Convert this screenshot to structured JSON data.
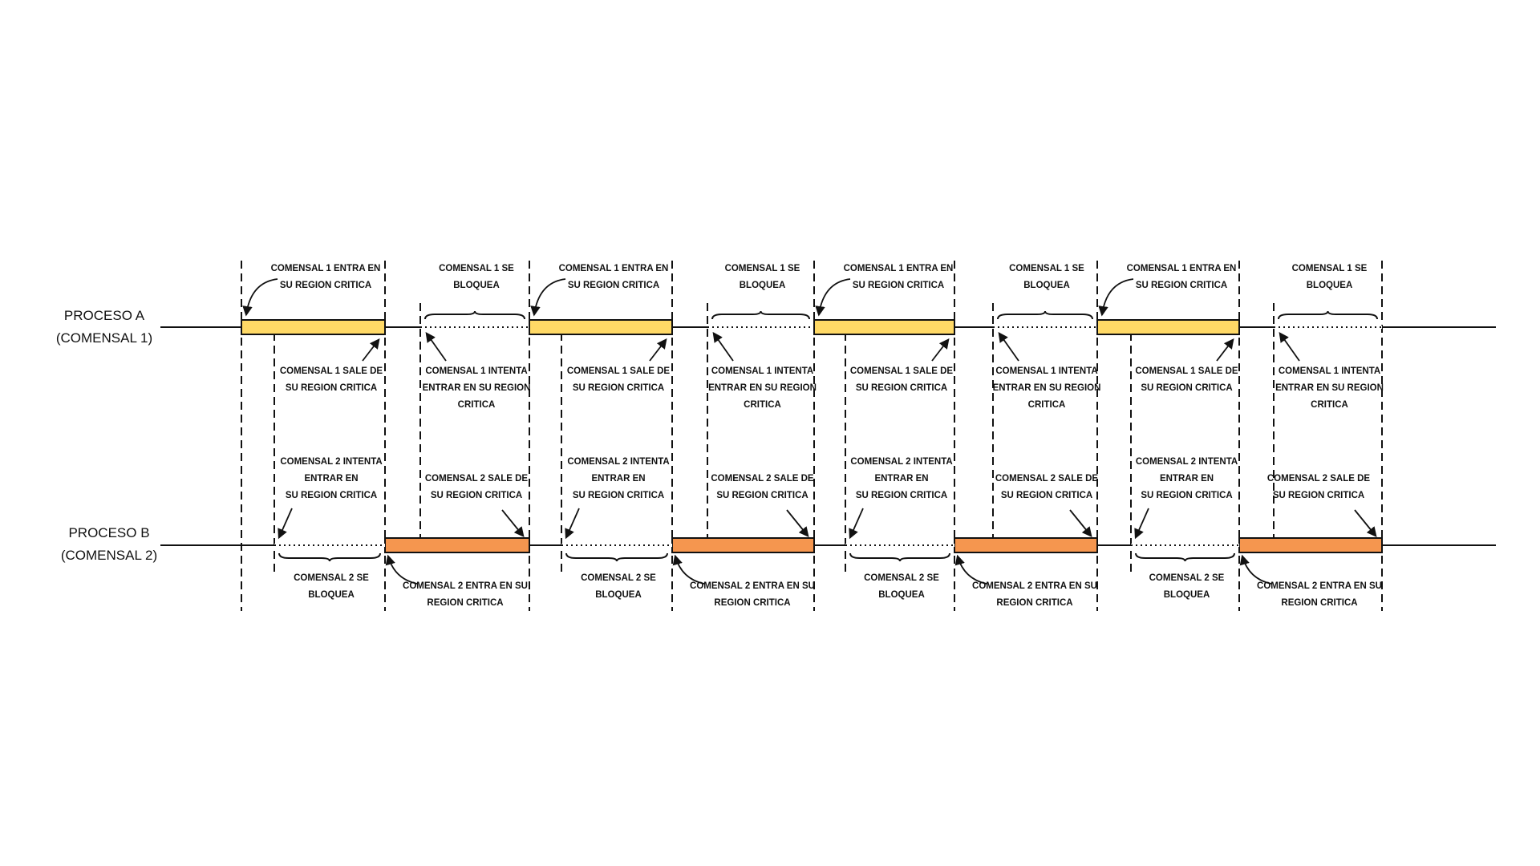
{
  "lanes": {
    "a": {
      "line1": "PROCESO A",
      "line2": "(COMENSAL 1)"
    },
    "b": {
      "line1": "PROCESO B",
      "line2": "(COMENSAL 2)"
    }
  },
  "colors": {
    "a_critical": "#FFD966",
    "b_critical": "#F5964F",
    "line": "#111111"
  },
  "labels": {
    "a_enters": [
      "COMENSAL 1 ENTRA EN",
      "SU REGION CRITICA"
    ],
    "a_exits": [
      "COMENSAL 1 SALE DE",
      "SU REGION CRITICA"
    ],
    "a_blocks": [
      "COMENSAL 1 SE",
      "BLOQUEA"
    ],
    "a_tries": [
      "COMENSAL 1 INTENTA",
      "ENTRAR EN SU REGION",
      "CRITICA"
    ],
    "b_tries": [
      "COMENSAL 2 INTENTA",
      "ENTRAR EN",
      "SU REGION CRITICA"
    ],
    "b_exits": [
      "COMENSAL 2 SALE DE",
      "SU REGION CRITICA"
    ],
    "b_blocks": [
      "COMENSAL 2 SE",
      "BLOQUEA"
    ],
    "b_enters": [
      "COMENSAL 2 ENTRA EN SU",
      "REGION CRITICA"
    ]
  }
}
